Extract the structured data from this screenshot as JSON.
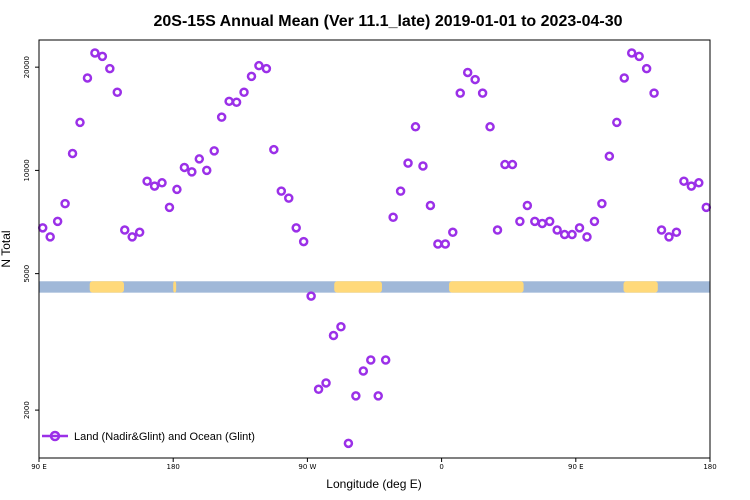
{
  "chart_data": {
    "type": "scatter",
    "title": "20S-15S Annual Mean (Ver 11.1_late)   2019-01-01 to 2023-04-30",
    "xlabel": "Longitude (deg E)",
    "ylabel": "N Total",
    "y_scale": "log",
    "xlim": [
      0,
      450
    ],
    "ylim": [
      1450,
      24000
    ],
    "x_ticks": [
      {
        "value": 0,
        "label": "90 E"
      },
      {
        "value": 90,
        "label": "180"
      },
      {
        "value": 180,
        "label": "90 W"
      },
      {
        "value": 270,
        "label": "0"
      },
      {
        "value": 360,
        "label": "90 E"
      },
      {
        "value": 450,
        "label": "180"
      }
    ],
    "y_ticks": [
      {
        "value": 2000,
        "label": "2000"
      },
      {
        "value": 5000,
        "label": "5000"
      },
      {
        "value": 10000,
        "label": "10000"
      },
      {
        "value": 20000,
        "label": "20000"
      }
    ],
    "land_band": {
      "y_range": [
        4400,
        4750
      ],
      "ocean_color": "#a0b8d8",
      "land_color": "#ffd97a",
      "land_segments": [
        [
          34,
          57
        ],
        [
          90,
          92
        ],
        [
          198,
          230
        ],
        [
          275,
          325
        ],
        [
          392,
          415
        ]
      ]
    },
    "legend": {
      "label": "Land (Nadir&Glint) and Ocean (Glint)",
      "position": "bottom-left"
    },
    "series": [
      {
        "name": "Land (Nadir&Glint) and Ocean (Glint)",
        "color": "#9b30e8",
        "x": [
          2.5,
          7.5,
          12.5,
          17.5,
          22.5,
          27.5,
          32.5,
          37.5,
          42.5,
          47.5,
          52.5,
          57.5,
          62.5,
          67.5,
          72.5,
          77.5,
          82.5,
          87.5,
          92.5,
          97.5,
          102.5,
          107.5,
          112.5,
          117.5,
          122.5,
          127.5,
          132.5,
          137.5,
          142.5,
          147.5,
          152.5,
          157.5,
          162.5,
          167.5,
          172.5,
          177.5,
          182.5,
          187.5,
          192.5,
          197.5,
          202.5,
          207.5,
          212.5,
          217.5,
          222.5,
          227.5,
          232.5,
          237.5,
          242.5,
          247.5,
          252.5,
          257.5,
          262.5,
          267.5,
          272.5,
          277.5,
          282.5,
          287.5,
          292.5,
          297.5,
          302.5,
          307.5,
          312.5,
          317.5,
          322.5,
          327.5,
          332.5,
          337.5,
          342.5,
          347.5,
          352.5,
          357.5,
          362.5,
          367.5,
          372.5,
          377.5,
          382.5,
          387.5,
          392.5,
          397.5,
          402.5,
          407.5,
          412.5,
          417.5,
          422.5,
          427.5,
          432.5,
          437.5,
          442.5,
          447.5
        ],
        "values": [
          6800,
          6400,
          7100,
          8000,
          11200,
          13800,
          18600,
          22000,
          21500,
          19800,
          16900,
          6700,
          6400,
          6600,
          9300,
          9000,
          9200,
          7800,
          8800,
          10200,
          9900,
          10800,
          10000,
          11400,
          14300,
          15900,
          15800,
          16900,
          18800,
          20200,
          19800,
          11500,
          8700,
          8300,
          6800,
          6200,
          4300,
          2300,
          2400,
          3300,
          3500,
          1600,
          2200,
          2600,
          2800,
          2200,
          2800,
          7300,
          8700,
          10500,
          13400,
          10300,
          7900,
          6100,
          6100,
          6600,
          16800,
          19300,
          18400,
          16800,
          13400,
          6700,
          10400,
          10400,
          7100,
          7900,
          7100,
          7000,
          7100,
          6700,
          6500,
          6500,
          6800,
          6400,
          7100,
          8000,
          11000,
          13800,
          18600,
          22000,
          21500,
          19800,
          16800,
          6700,
          6400,
          6600,
          9300,
          9000,
          9200,
          7800
        ]
      }
    ]
  }
}
